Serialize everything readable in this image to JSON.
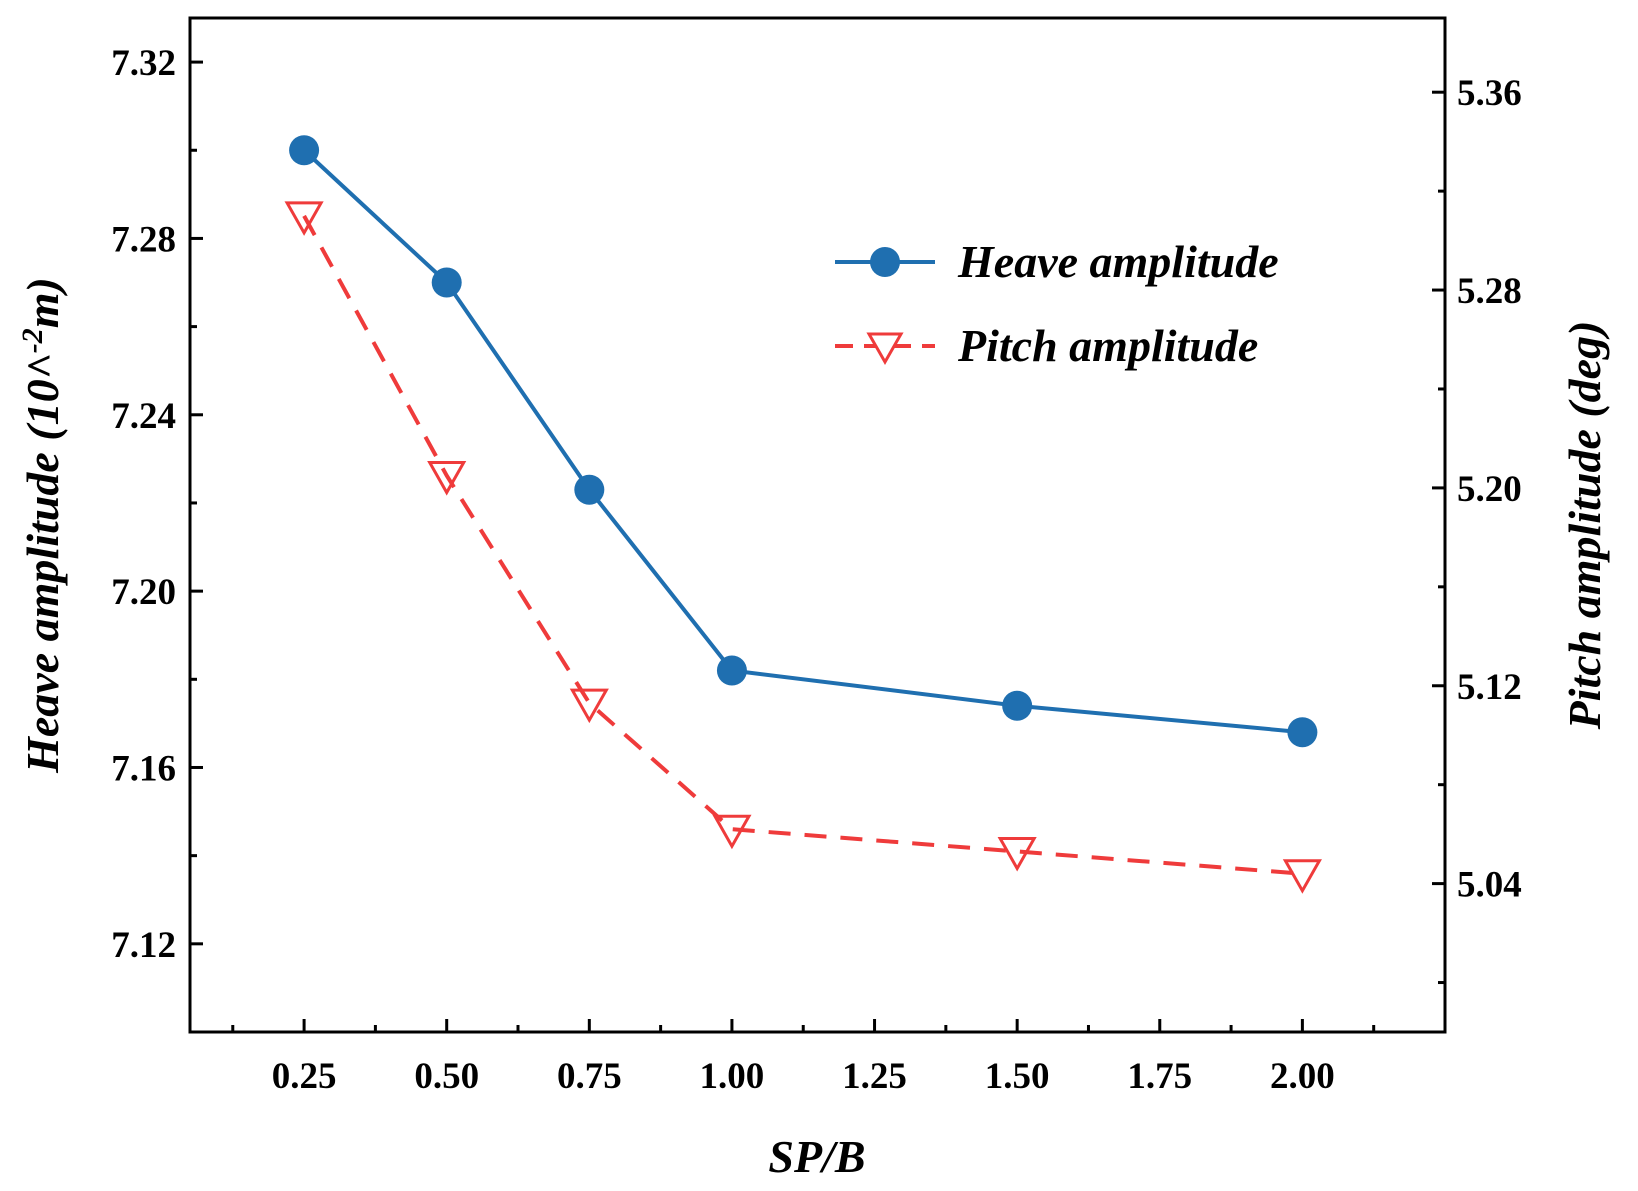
{
  "chart_data": {
    "type": "line",
    "x": [
      0.25,
      0.5,
      0.75,
      1.0,
      1.5,
      2.0
    ],
    "xlabel": "SP/B",
    "xlim": [
      0.05,
      2.25
    ],
    "xticks": [
      0.25,
      0.5,
      0.75,
      1.0,
      1.25,
      1.5,
      1.75,
      2.0
    ],
    "xtick_labels": [
      "0.25",
      "0.50",
      "0.75",
      "1.00",
      "1.25",
      "1.50",
      "1.75",
      "2.00"
    ],
    "y_left": {
      "label_main": "Heave amplitude (10^",
      "label_sup": "-2",
      "label_end": "m)",
      "lim": [
        7.1,
        7.33
      ],
      "ticks": [
        7.12,
        7.16,
        7.2,
        7.24,
        7.28,
        7.32
      ],
      "tick_labels": [
        "7.12",
        "7.16",
        "7.20",
        "7.24",
        "7.28",
        "7.32"
      ]
    },
    "y_right": {
      "label": "Pitch amplitude (deg)",
      "lim": [
        4.98,
        5.39
      ],
      "ticks": [
        5.04,
        5.12,
        5.2,
        5.28,
        5.36
      ],
      "tick_labels": [
        "5.04",
        "5.12",
        "5.20",
        "5.28",
        "5.36"
      ]
    },
    "series": [
      {
        "name": "Heave amplitude",
        "axis": "left",
        "color": "#1f6fb0",
        "marker": "circle",
        "line": "solid",
        "values": [
          7.3,
          7.27,
          7.223,
          7.182,
          7.174,
          7.168
        ]
      },
      {
        "name": "Pitch amplitude",
        "axis": "right",
        "color": "#ef3b3b",
        "marker": "triangle-down-open",
        "line": "dashed",
        "values": [
          5.31,
          5.205,
          5.113,
          5.062,
          5.053,
          5.044
        ]
      }
    ],
    "legend_position": "top-right"
  }
}
